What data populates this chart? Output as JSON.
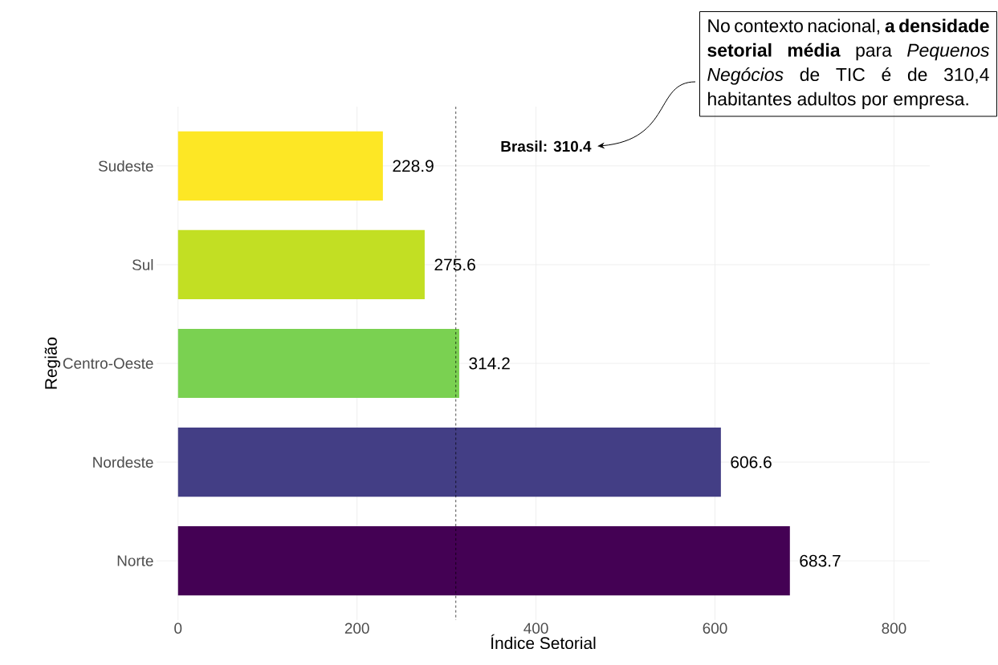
{
  "chart_data": {
    "type": "bar",
    "orientation": "horizontal",
    "categories": [
      "Sudeste",
      "Sul",
      "Centro-Oeste",
      "Nordeste",
      "Norte"
    ],
    "values": [
      228.9,
      275.6,
      314.2,
      606.6,
      683.7
    ],
    "colors": [
      "#fde725",
      "#c2df23",
      "#7ad151",
      "#433e85",
      "#440154"
    ],
    "xlabel": "Índice Setorial",
    "ylabel": "Região",
    "xlim": [
      -24,
      840
    ],
    "xticks": [
      0,
      200,
      400,
      600,
      800
    ],
    "grid": true,
    "data_labels": true,
    "ref_lines": [
      {
        "axis": "x",
        "value": 310.4,
        "label": "Brasil: 310.4",
        "line_style": "dashed",
        "color": "#000000"
      }
    ],
    "annotations": [
      "No contexto nacional, **a densidade setorial média** para *Pequenos Negócios* de TIC é de 310,4 habitantes adultos por empresa."
    ]
  }
}
